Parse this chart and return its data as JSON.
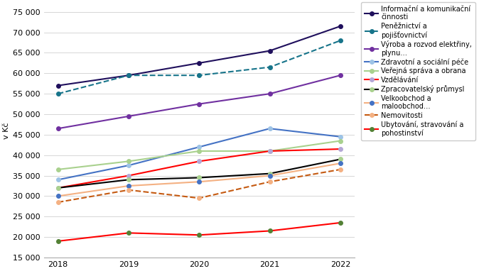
{
  "years": [
    2018,
    2019,
    2020,
    2021,
    2022
  ],
  "series": [
    {
      "label": "Informační a komunikační\nčinnosti",
      "line_color": "#1f0f5c",
      "marker_color": "#1f0f5c",
      "linestyle": "-",
      "values": [
        57000,
        59500,
        62500,
        65500,
        71500
      ]
    },
    {
      "label": "Peněžnictví a\npojišťovnictví",
      "line_color": "#17748a",
      "marker_color": "#17748a",
      "linestyle": "--",
      "values": [
        55000,
        59500,
        59500,
        61500,
        68000
      ]
    },
    {
      "label": "Výroba a rozvod elektřiny,\nplynu…",
      "line_color": "#7030a0",
      "marker_color": "#7030a0",
      "linestyle": "-",
      "values": [
        46500,
        49500,
        52500,
        55000,
        59500
      ]
    },
    {
      "label": "Zdravotní a sociální péče",
      "line_color": "#4472c4",
      "marker_color": "#9dc3e6",
      "linestyle": "-",
      "values": [
        34000,
        37500,
        42000,
        46500,
        44500
      ]
    },
    {
      "label": "Veřejná správa a obrana",
      "line_color": "#a9d18e",
      "marker_color": "#a9d18e",
      "linestyle": "-",
      "values": [
        36500,
        38500,
        41000,
        41000,
        43500
      ]
    },
    {
      "label": "Vzdělávání",
      "line_color": "#ff0000",
      "marker_color": "#b4a7d6",
      "linestyle": "-",
      "values": [
        32000,
        35000,
        38500,
        41000,
        41500
      ]
    },
    {
      "label": "Zpracovatelský průmysl",
      "line_color": "#000000",
      "marker_color": "#a9d18e",
      "linestyle": "-",
      "values": [
        32000,
        34000,
        34500,
        35500,
        39000
      ]
    },
    {
      "label": "Velkoobchod a\nmaloobchod…",
      "line_color": "#f4b183",
      "marker_color": "#4472c4",
      "linestyle": "-",
      "values": [
        30000,
        32500,
        33500,
        35000,
        38000
      ]
    },
    {
      "label": "Nemovitosti",
      "line_color": "#c55a11",
      "marker_color": "#f4b183",
      "linestyle": "--",
      "values": [
        28500,
        31500,
        29500,
        33500,
        36500
      ]
    },
    {
      "label": "Ubytování, stravování a\npohostinství",
      "line_color": "#ff0000",
      "marker_color": "#538135",
      "linestyle": "-",
      "values": [
        19000,
        21000,
        20500,
        21500,
        23500
      ]
    }
  ],
  "ylabel": "v Kč",
  "ylim": [
    15000,
    77000
  ],
  "yticks": [
    15000,
    20000,
    25000,
    30000,
    35000,
    40000,
    45000,
    50000,
    55000,
    60000,
    65000,
    70000,
    75000
  ],
  "background_color": "#ffffff",
  "plot_bg_color": "#ffffff"
}
